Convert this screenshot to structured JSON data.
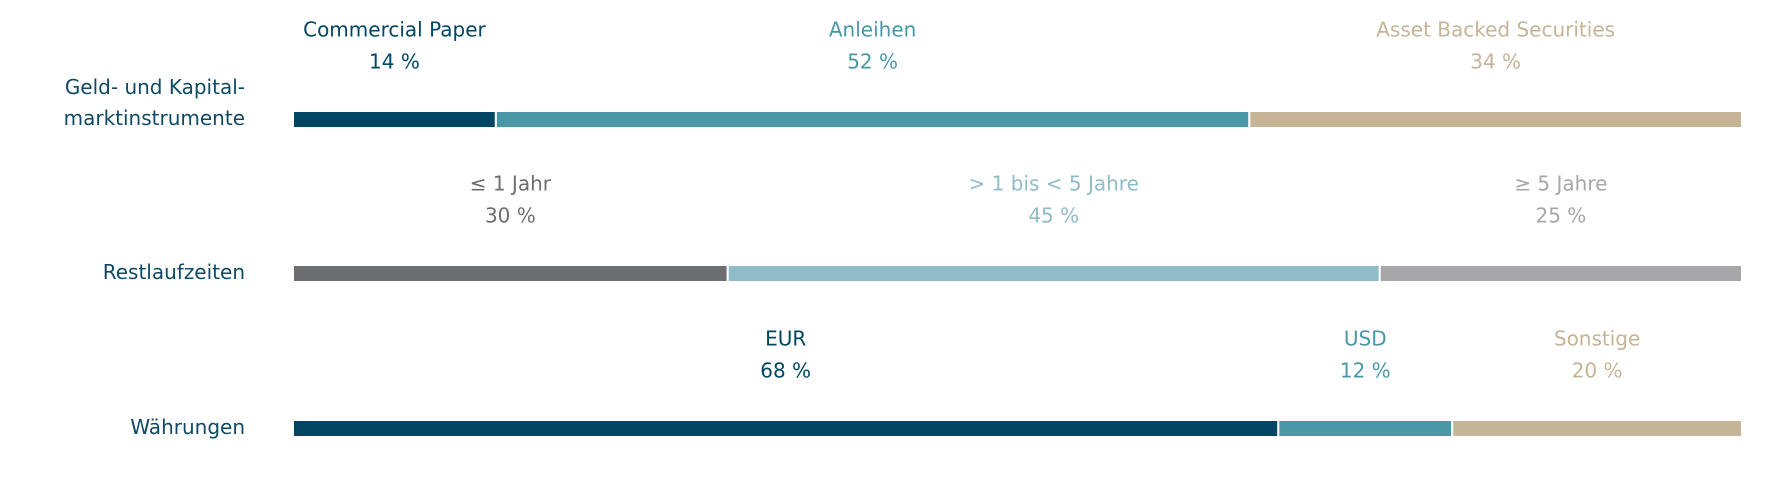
{
  "chart_data": [
    {
      "type": "bar",
      "label": [
        "Geld- und Kapital-",
        "marktinstrumente"
      ],
      "xlim": [
        0,
        100
      ],
      "series": [
        {
          "name": "Commercial Paper",
          "color": "#004563",
          "values": [
            14
          ],
          "value_labels": [
            "14 %"
          ]
        },
        {
          "name": "Anleihen",
          "color": "#4a97a7",
          "values": [
            52
          ],
          "value_labels": [
            "52 %"
          ]
        },
        {
          "name": "Asset Backed Securities",
          "color": "#c5b496",
          "values": [
            34
          ],
          "value_labels": [
            "34 %"
          ]
        }
      ]
    },
    {
      "type": "bar",
      "label": [
        "Restlaufzeiten"
      ],
      "xlim": [
        0,
        100
      ],
      "series": [
        {
          "name": "≤ 1 Jahr",
          "color": "#6d6e71",
          "values": [
            30
          ],
          "value_labels": [
            "30 %"
          ]
        },
        {
          "name": "> 1 bis < 5 Jahre",
          "color": "#8fbcc6",
          "values": [
            45
          ],
          "value_labels": [
            "45 %"
          ]
        },
        {
          "name": "≥ 5 Jahre",
          "color": "#a7a6a9",
          "values": [
            25
          ],
          "value_labels": [
            "25 %"
          ]
        }
      ]
    },
    {
      "type": "bar",
      "label": [
        "Währungen"
      ],
      "xlim": [
        0,
        100
      ],
      "series": [
        {
          "name": "EUR",
          "color": "#004563",
          "values": [
            68
          ],
          "value_labels": [
            "68 %"
          ]
        },
        {
          "name": "USD",
          "color": "#4a97a7",
          "values": [
            12
          ],
          "value_labels": [
            "12 %"
          ]
        },
        {
          "name": "Sonstige",
          "color": "#c5b496",
          "values": [
            20
          ],
          "value_labels": [
            "20 %"
          ]
        }
      ]
    }
  ]
}
